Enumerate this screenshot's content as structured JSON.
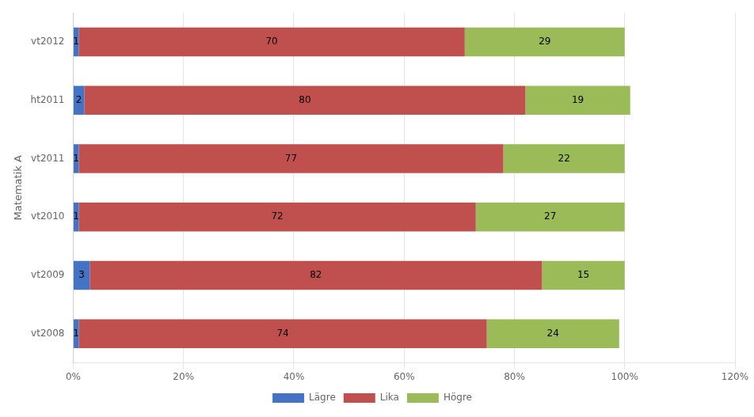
{
  "chart_data": {
    "type": "bar",
    "orientation": "horizontal",
    "stacked": true,
    "categories": [
      "vt2008",
      "vt2009",
      "vt2010",
      "vt2011",
      "ht2011",
      "vt2012"
    ],
    "series": [
      {
        "name": "Lägre",
        "color": "#4472C4",
        "values": [
          1,
          3,
          1,
          1,
          2,
          1
        ]
      },
      {
        "name": "Lika",
        "color": "#C0504D",
        "values": [
          74,
          82,
          72,
          77,
          80,
          70
        ]
      },
      {
        "name": "Högre",
        "color": "#9BBB59",
        "values": [
          24,
          15,
          27,
          22,
          19,
          29
        ]
      }
    ],
    "ylabel": "Matematik A",
    "xlim": [
      0,
      120
    ],
    "xticks": [
      {
        "value": 0,
        "label": "0%"
      },
      {
        "value": 20,
        "label": "20%"
      },
      {
        "value": 40,
        "label": "40%"
      },
      {
        "value": 60,
        "label": "60%"
      },
      {
        "value": 80,
        "label": "80%"
      },
      {
        "value": 100,
        "label": "100%"
      },
      {
        "value": 120,
        "label": "120%"
      }
    ],
    "grid": true,
    "legend": "bottom",
    "data_labels": true
  }
}
